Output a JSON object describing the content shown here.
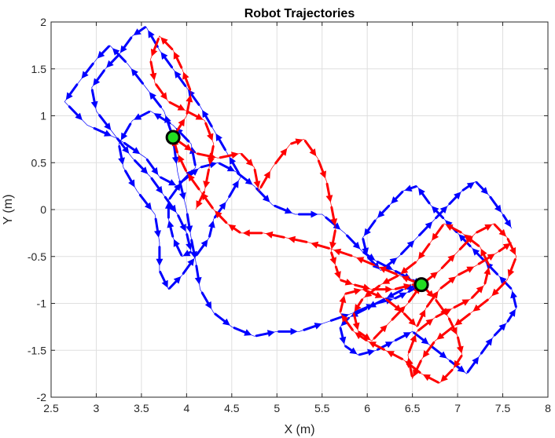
{
  "chart_data": {
    "type": "line",
    "title": "Robot Trajectories",
    "xlabel": "X (m)",
    "ylabel": "Y (m)",
    "xlim": [
      2.5,
      8
    ],
    "ylim": [
      -2,
      2
    ],
    "grid": true,
    "x_ticks": [
      2.5,
      3,
      3.5,
      4,
      4.5,
      5,
      5.5,
      6,
      6.5,
      7,
      7.5,
      8
    ],
    "x_tick_labels": [
      "2.5",
      "3",
      "3.5",
      "4",
      "4.5",
      "5",
      "5.5",
      "6",
      "6.5",
      "7",
      "7.5",
      "8"
    ],
    "y_ticks": [
      -2,
      -1.5,
      -1,
      -0.5,
      0,
      0.5,
      1,
      1.5,
      2
    ],
    "y_tick_labels": [
      "-2",
      "-1.5",
      "-1",
      "-0.5",
      "0",
      "0.5",
      "1",
      "1.5",
      "2"
    ],
    "series": [
      {
        "color": "#0000ff",
        "x": [
          3.85,
          3.75,
          3.55,
          3.35,
          3.15,
          3.0,
          2.8,
          2.65,
          2.9,
          3.25,
          3.55,
          3.7,
          3.9,
          4.1,
          4.05,
          3.85,
          3.6,
          3.4,
          3.25,
          3.3,
          3.45,
          3.65,
          3.7,
          3.7,
          3.8,
          3.95,
          4.1,
          4.25,
          4.3,
          4.45,
          4.6,
          4.45,
          4.3,
          4.15,
          4.0,
          3.85,
          3.7,
          3.55,
          3.4,
          3.25,
          3.1,
          2.95,
          3.0,
          3.2,
          3.4,
          3.6,
          3.75,
          3.9,
          4.0,
          4.05,
          3.95,
          3.85,
          3.8,
          3.8,
          3.95,
          4.15,
          4.35,
          4.55,
          4.75,
          4.95,
          5.2,
          5.5,
          5.75,
          5.95,
          6.1,
          6.3,
          6.5,
          6.6
        ],
        "y": [
          0.77,
          1.05,
          1.3,
          1.55,
          1.75,
          1.6,
          1.35,
          1.15,
          0.9,
          0.75,
          0.55,
          0.35,
          0.25,
          0.45,
          0.7,
          0.9,
          1.05,
          0.95,
          0.7,
          0.45,
          0.2,
          -0.05,
          -0.35,
          -0.65,
          -0.85,
          -0.7,
          -0.5,
          -0.3,
          -0.1,
          0.1,
          0.35,
          0.6,
          0.85,
          1.1,
          1.3,
          1.5,
          1.7,
          1.95,
          1.85,
          1.65,
          1.5,
          1.3,
          1.05,
          0.8,
          0.55,
          0.35,
          0.15,
          -0.05,
          -0.25,
          -0.45,
          -0.5,
          -0.3,
          -0.1,
          0.1,
          0.3,
          0.45,
          0.5,
          0.4,
          0.25,
          0.05,
          -0.05,
          -0.05,
          -0.25,
          -0.45,
          -0.55,
          -0.65,
          -0.75,
          -0.8
        ]
      },
      {
        "color": "#0000ff",
        "x": [
          3.85,
          3.9,
          4.0,
          4.05,
          4.1,
          4.15,
          4.3,
          4.5,
          4.75,
          5.0,
          5.25,
          5.55,
          5.85,
          6.1,
          6.3,
          6.45,
          6.6
        ],
        "y": [
          0.77,
          0.4,
          0.0,
          -0.3,
          -0.55,
          -0.85,
          -1.1,
          -1.25,
          -1.35,
          -1.3,
          -1.3,
          -1.2,
          -1.1,
          -1.0,
          -0.95,
          -0.88,
          -0.8
        ]
      },
      {
        "color": "#0000ff",
        "x": [
          6.6,
          6.4,
          6.2,
          6.0,
          5.8,
          5.7,
          5.75,
          5.9,
          6.1,
          6.3,
          6.5,
          6.7,
          6.9,
          7.1,
          7.25,
          7.4,
          7.55,
          7.65,
          7.6,
          7.45,
          7.3,
          7.15,
          7.0,
          6.85,
          6.7,
          6.55,
          6.4,
          6.25,
          6.1,
          5.95,
          6.0,
          6.15,
          6.35,
          6.55,
          6.75,
          6.9,
          7.05,
          7.2,
          7.35,
          7.5,
          7.6
        ],
        "y": [
          -0.8,
          -0.85,
          -0.95,
          -1.05,
          -1.15,
          -1.25,
          -1.45,
          -1.55,
          -1.5,
          -1.4,
          -1.3,
          -1.45,
          -1.6,
          -1.75,
          -1.55,
          -1.35,
          -1.2,
          -1.05,
          -0.85,
          -0.7,
          -0.55,
          -0.4,
          -0.25,
          -0.1,
          0.05,
          0.25,
          0.2,
          0.05,
          -0.1,
          -0.3,
          -0.5,
          -0.65,
          -0.5,
          -0.3,
          -0.1,
          0.05,
          0.2,
          0.3,
          0.15,
          -0.05,
          -0.2
        ]
      },
      {
        "color": "#ff0000",
        "x": [
          6.6,
          6.35,
          6.1,
          5.85,
          5.6,
          5.35,
          5.1,
          4.85,
          4.6,
          4.45,
          4.3,
          4.15,
          4.0,
          3.9,
          3.85
        ],
        "y": [
          -0.8,
          -0.7,
          -0.6,
          -0.5,
          -0.42,
          -0.35,
          -0.3,
          -0.25,
          -0.25,
          -0.15,
          0.0,
          0.2,
          0.4,
          0.6,
          0.77
        ]
      },
      {
        "color": "#ff0000",
        "x": [
          3.85,
          4.1,
          4.35,
          4.6,
          4.75,
          4.8,
          4.95,
          5.15,
          5.3,
          5.45,
          5.55,
          5.6,
          5.65,
          5.6,
          5.65,
          5.7,
          5.85,
          6.05,
          6.3,
          6.5,
          6.6
        ],
        "y": [
          0.77,
          0.6,
          0.55,
          0.6,
          0.45,
          0.2,
          0.45,
          0.7,
          0.75,
          0.55,
          0.3,
          0.05,
          -0.2,
          -0.45,
          -0.6,
          -0.75,
          -0.8,
          -0.85,
          -0.85,
          -0.8,
          -0.8
        ]
      },
      {
        "color": "#ff0000",
        "x": [
          3.85,
          4.0,
          4.05,
          3.95,
          3.85,
          3.7,
          3.6,
          3.65,
          3.8,
          4.0,
          4.2,
          4.3,
          4.25,
          4.2,
          4.1
        ],
        "y": [
          0.77,
          1.0,
          1.25,
          1.5,
          1.7,
          1.85,
          1.6,
          1.35,
          1.15,
          1.05,
          0.95,
          0.7,
          0.45,
          0.2,
          0.0
        ]
      },
      {
        "color": "#ff0000",
        "x": [
          6.6,
          6.8,
          7.0,
          7.2,
          7.4,
          7.55,
          7.65,
          7.55,
          7.35,
          7.15,
          6.95,
          6.75,
          6.6,
          6.5,
          6.45,
          6.55,
          6.75,
          6.95,
          7.15,
          7.3,
          7.35,
          7.25,
          7.05,
          6.85,
          6.7,
          6.55,
          6.35,
          6.15,
          5.95,
          5.85,
          5.9,
          6.05,
          6.25,
          6.45,
          6.6
        ],
        "y": [
          -0.8,
          -0.65,
          -0.45,
          -0.25,
          -0.15,
          -0.3,
          -0.5,
          -0.75,
          -0.95,
          -1.1,
          -1.25,
          -1.4,
          -1.6,
          -1.8,
          -1.55,
          -1.3,
          -1.15,
          -1.05,
          -0.95,
          -0.8,
          -0.6,
          -0.4,
          -0.25,
          -0.15,
          -0.35,
          -0.55,
          -0.7,
          -0.8,
          -0.95,
          -1.1,
          -1.3,
          -1.4,
          -1.2,
          -1.0,
          -0.8
        ]
      },
      {
        "color": "#ff0000",
        "x": [
          6.6,
          6.75,
          6.9,
          7.0,
          7.05,
          6.95,
          6.8,
          6.6,
          6.4,
          6.2,
          6.0,
          5.85,
          5.7,
          5.75,
          5.95,
          6.2,
          6.4,
          6.55,
          6.65,
          6.8,
          7.0,
          7.2,
          7.45,
          7.6
        ],
        "y": [
          -0.8,
          -0.95,
          -1.15,
          -1.35,
          -1.55,
          -1.7,
          -1.85,
          -1.75,
          -1.6,
          -1.5,
          -1.4,
          -1.3,
          -1.1,
          -0.9,
          -0.85,
          -0.95,
          -1.1,
          -1.25,
          -1.05,
          -0.85,
          -0.7,
          -0.6,
          -0.45,
          -0.35
        ]
      }
    ],
    "markers": [
      {
        "x": 3.85,
        "y": 0.77,
        "fill": "#22dd22",
        "edge": "#000000"
      },
      {
        "x": 6.6,
        "y": -0.8,
        "fill": "#22dd22",
        "edge": "#000000"
      }
    ]
  }
}
